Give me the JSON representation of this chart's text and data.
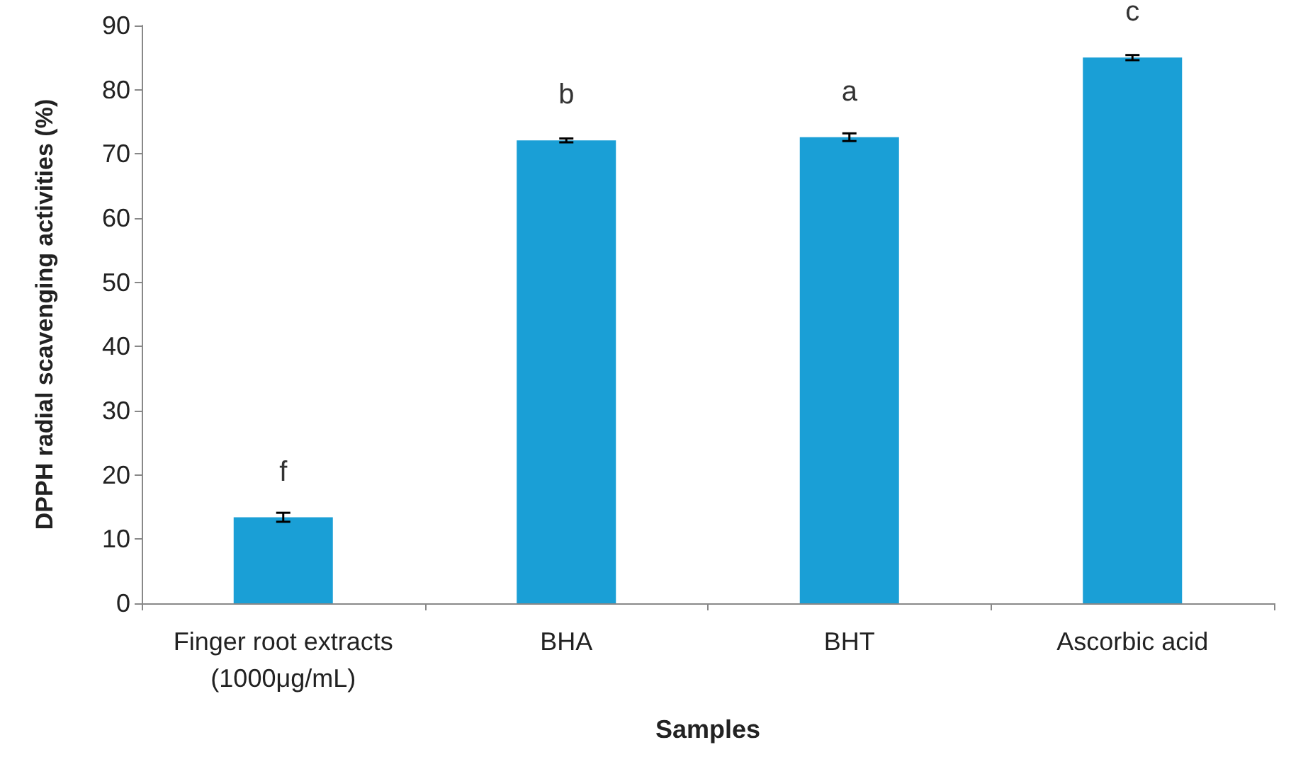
{
  "chart_data": {
    "type": "bar",
    "xlabel": "Samples",
    "ylabel": "DPPH radial scavenging activities (%)",
    "categories": [
      "Finger root extracts\n(1000μg/mL)",
      "BHA",
      "BHT",
      "Ascorbic acid"
    ],
    "values": [
      13.4,
      72.1,
      72.6,
      85
    ],
    "errors": [
      0.7,
      0.3,
      0.6,
      0.4
    ],
    "color": "#1a9fd6",
    "ylim": [
      0,
      90
    ],
    "yticks": [
      0,
      10,
      20,
      30,
      40,
      50,
      60,
      70,
      80,
      90
    ],
    "grid": false,
    "annotations": [
      {
        "text": "f",
        "x": "Finger root extracts\n(1000μg/mL)",
        "y": 13.4
      },
      {
        "text": "b",
        "x": "BHA",
        "y": 72.1
      },
      {
        "text": "a",
        "x": "BHT",
        "y": 72.6
      },
      {
        "text": "c",
        "x": "Ascorbic acid",
        "y": 85
      }
    ]
  }
}
